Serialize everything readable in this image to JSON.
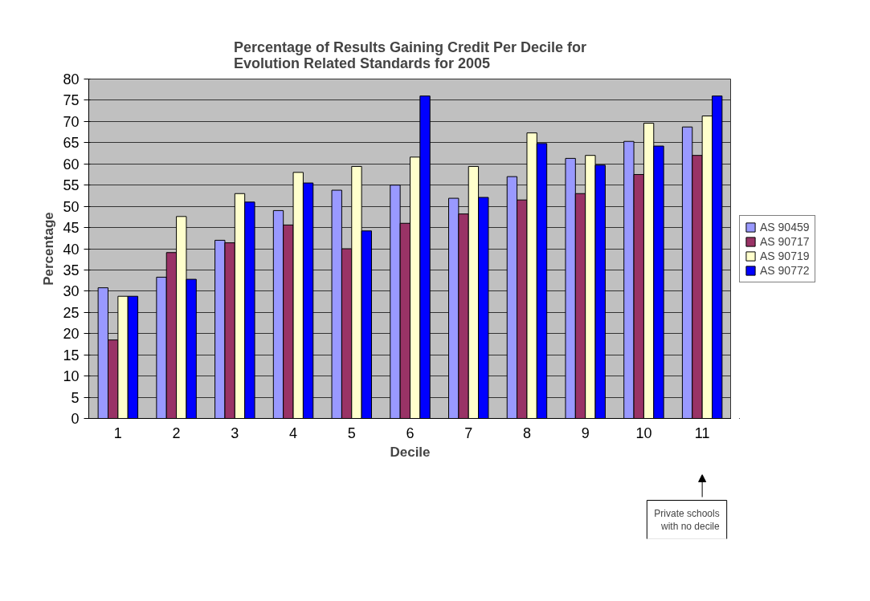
{
  "chart_data": {
    "type": "bar",
    "title": "Percentage of Results Gaining Credit Per Decile for\nEvolution Related Standards for 2005",
    "xlabel": "Decile",
    "ylabel": "Percentage",
    "categories": [
      "1",
      "2",
      "3",
      "4",
      "5",
      "6",
      "7",
      "8",
      "9",
      "10",
      "11"
    ],
    "series": [
      {
        "name": "AS 90459",
        "color": "#9999ff",
        "values": [
          30.8,
          33.3,
          42,
          49,
          53.8,
          55,
          51.9,
          57,
          61.3,
          65.3,
          68.7
        ]
      },
      {
        "name": "AS 90717",
        "color": "#993366",
        "values": [
          18.5,
          39.1,
          41.4,
          45.6,
          40,
          46,
          48.2,
          51.5,
          53,
          57.5,
          62
        ]
      },
      {
        "name": "AS 90719",
        "color": "#ffffcc",
        "values": [
          28.8,
          47.6,
          53,
          58,
          59.4,
          61.6,
          59.4,
          67.3,
          62,
          69.6,
          71.3
        ]
      },
      {
        "name": "AS 90772",
        "color": "#0000ff",
        "values": [
          28.8,
          32.8,
          51,
          55.5,
          44.2,
          76,
          52.1,
          64.8,
          59.7,
          64.2,
          76
        ]
      }
    ],
    "ylim": [
      0,
      80
    ],
    "yticks": [
      0,
      5,
      10,
      15,
      20,
      25,
      30,
      35,
      40,
      45,
      50,
      55,
      60,
      65,
      70,
      75,
      80
    ],
    "grid": "y",
    "legend": "right",
    "annotations": [
      "Private schools\nwith no decile"
    ]
  }
}
